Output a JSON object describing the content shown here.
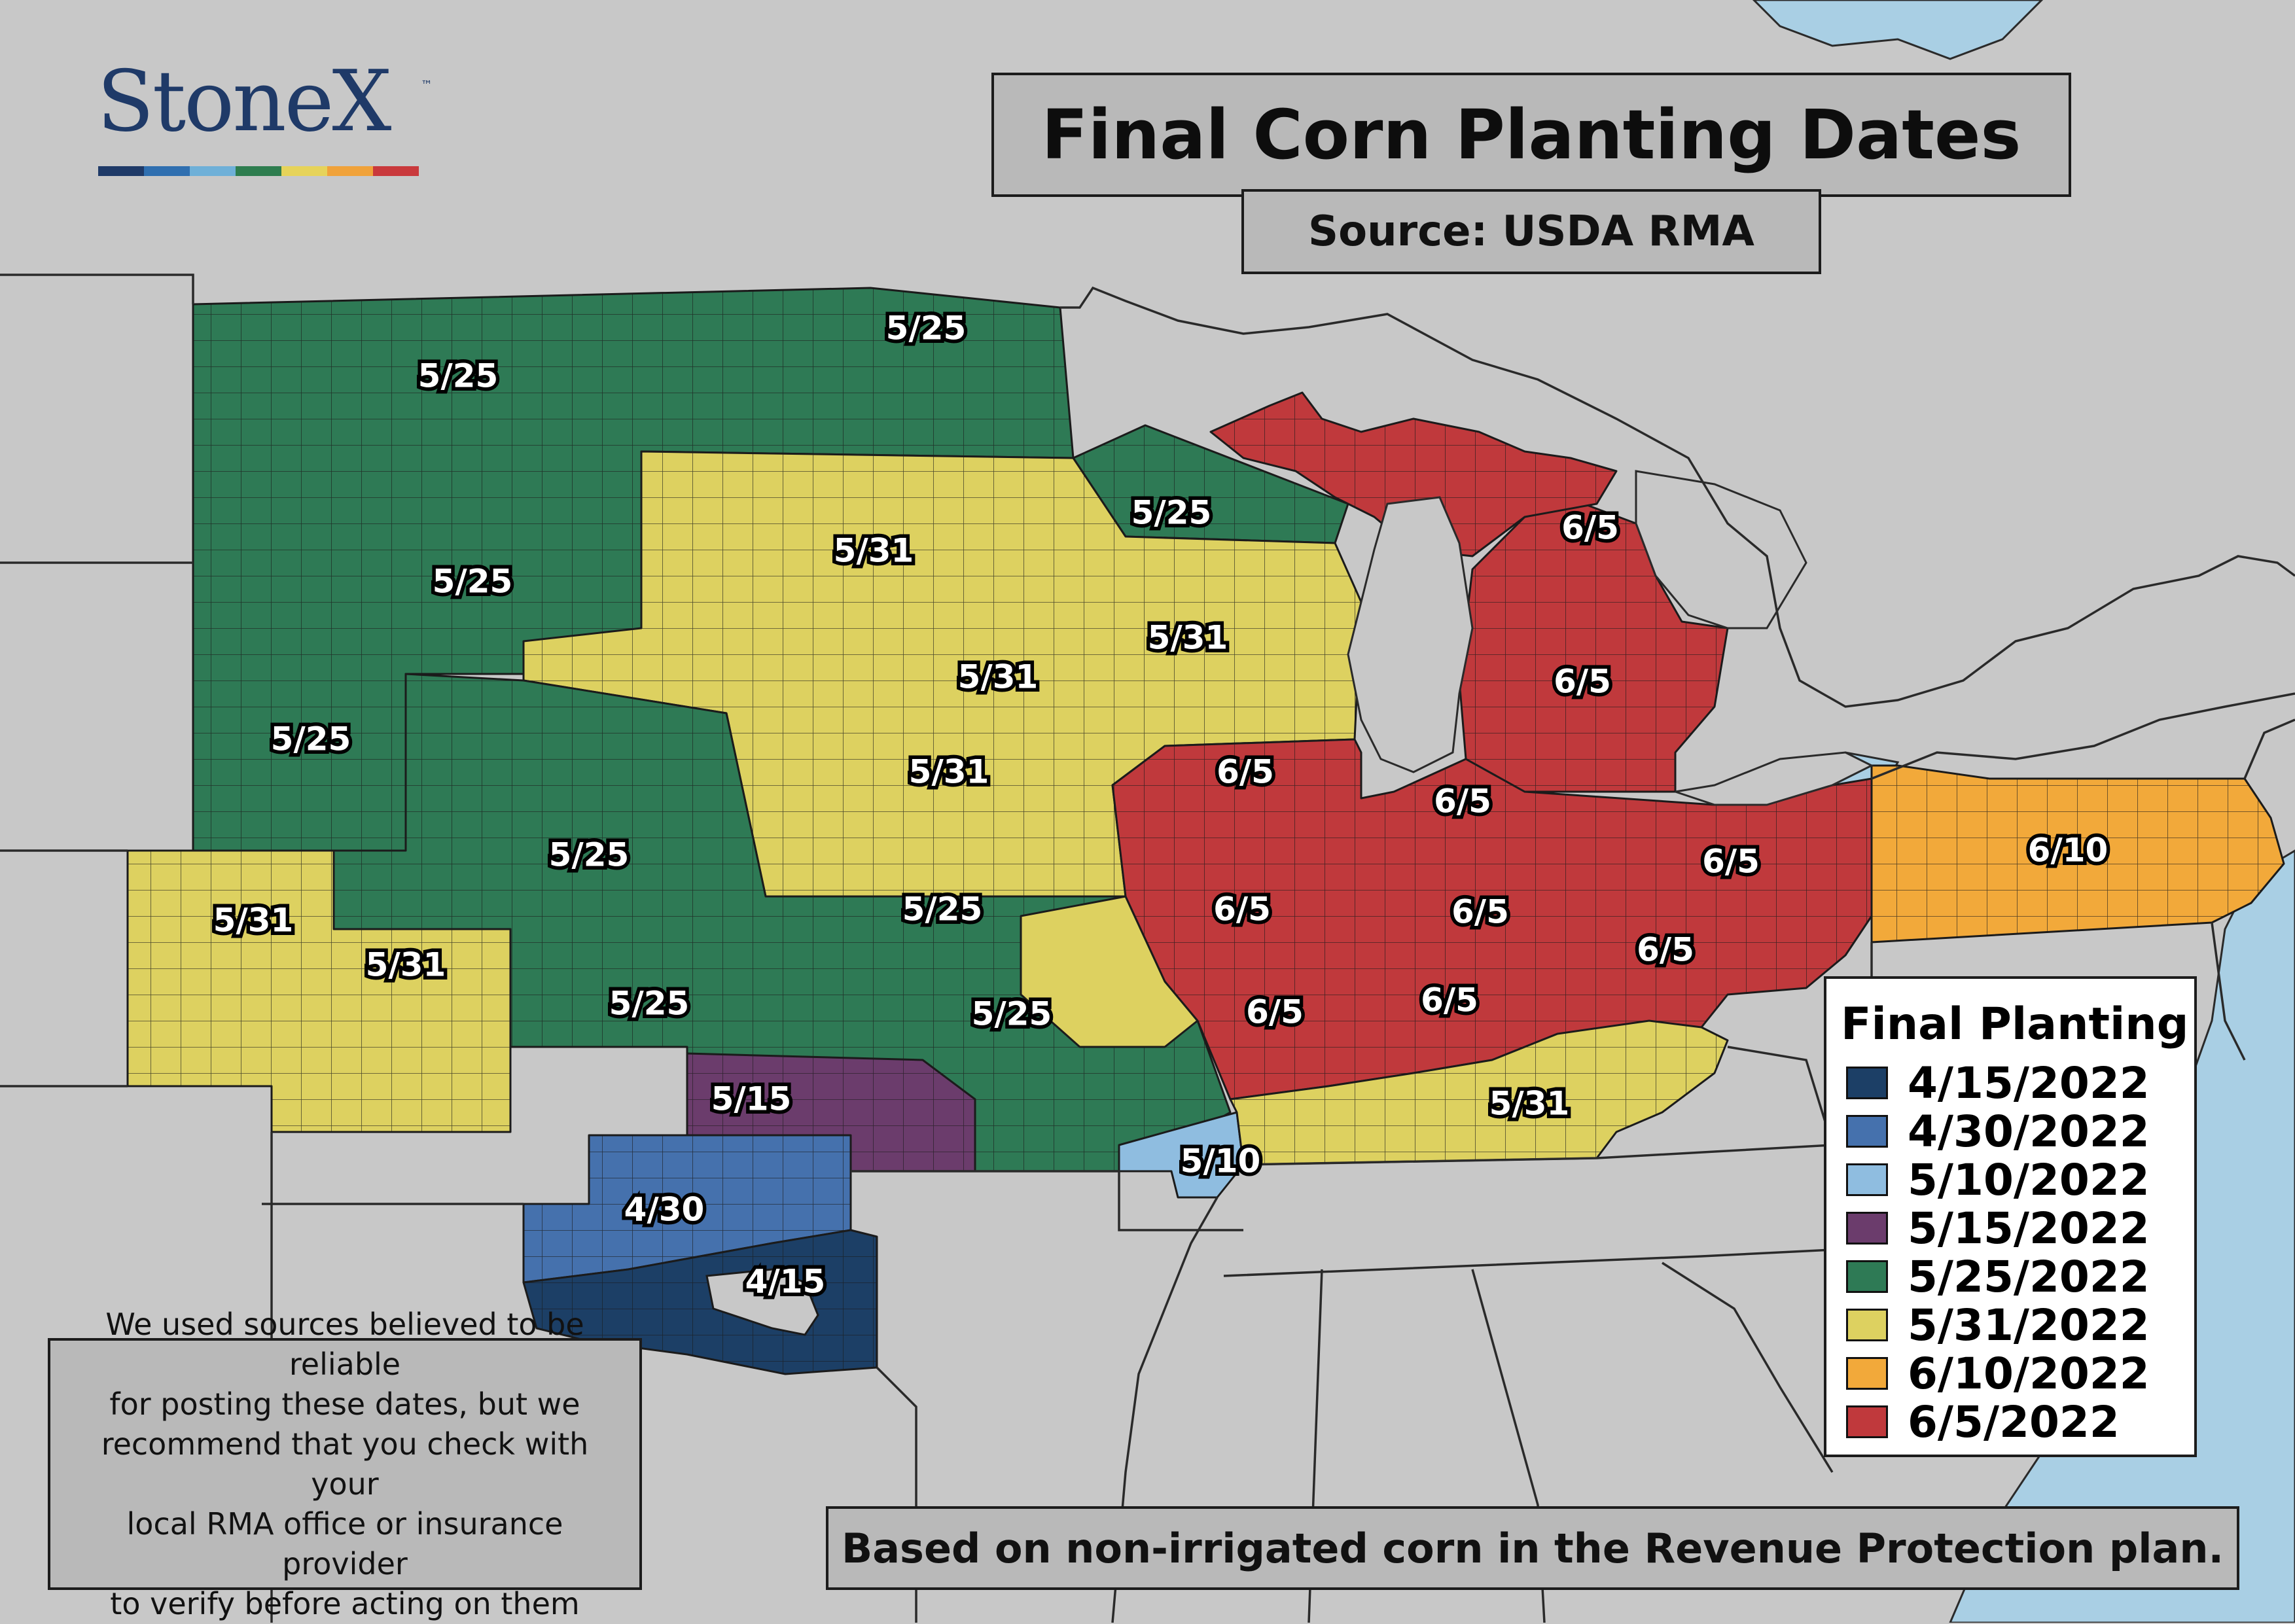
{
  "logo": {
    "text": "StoneX",
    "tm": "™",
    "bars": [
      "#1f3a68",
      "#2f6fb0",
      "#6fb0d8",
      "#2e7d4f",
      "#e6d35a",
      "#f0a23a",
      "#c9393c"
    ]
  },
  "title": "Final Corn Planting Dates",
  "subtitle": "Source: USDA RMA",
  "legend": {
    "title": "Final Planting",
    "items": [
      {
        "label": "4/15/2022",
        "color": "#1c3f66"
      },
      {
        "label": "4/30/2022",
        "color": "#4571ad"
      },
      {
        "label": "5/10/2022",
        "color": "#8fbde0"
      },
      {
        "label": "5/15/2022",
        "color": "#6b3c6c"
      },
      {
        "label": "5/25/2022",
        "color": "#2e7a55"
      },
      {
        "label": "5/31/2022",
        "color": "#ddd160"
      },
      {
        "label": "6/10/2022",
        "color": "#f2a93a"
      },
      {
        "label": "6/5/2022",
        "color": "#c0393c"
      }
    ]
  },
  "map_labels": {
    "nd_w": "5/25",
    "mn_n": "5/25",
    "wi_n": "5/25",
    "sd": "5/25",
    "ne_w": "5/25",
    "ne_e": "5/25",
    "ks_e": "5/25",
    "mo_n": "5/25",
    "mo_e": "5/25",
    "mn_c": "5/31",
    "wi_s": "5/31",
    "mn_s": "5/31",
    "ia": "5/31",
    "co": "5/31",
    "ks_w": "5/31",
    "ky": "5/31",
    "mi_n": "6/5",
    "mi_s": "6/5",
    "il_n": "6/5",
    "in_n": "6/5",
    "oh": "6/5",
    "il_c": "6/5",
    "in_c": "6/5",
    "oh_s": "6/5",
    "il_s": "6/5",
    "in_s": "6/5",
    "pa": "6/10",
    "ok_n": "5/15",
    "ok_c": "4/30",
    "ok_s": "4/15",
    "mo_se": "5/10"
  },
  "disclaimer": [
    "We used sources believed to be reliable",
    "for posting these dates, but we",
    "recommend that you check with your",
    "local RMA office or insurance provider",
    "to verify before acting on them"
  ],
  "footer": "Based on non-irrigated corn in the Revenue Protection plan."
}
